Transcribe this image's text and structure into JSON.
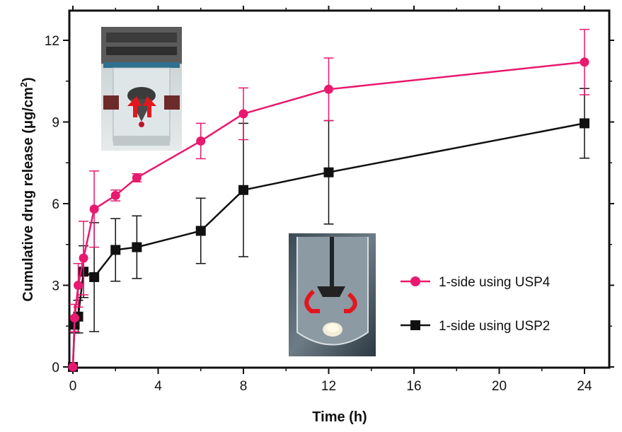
{
  "chart_data": {
    "type": "line",
    "xlabel": "Time (h)",
    "ylabel_main": "Cumulative drug release (μg/cm",
    "ylabel_sup": "2",
    "ylabel_end": ")",
    "xlim": [
      0,
      24
    ],
    "ylim": [
      0,
      12
    ],
    "xticks": [
      0,
      4,
      8,
      12,
      16,
      20,
      24
    ],
    "yticks": [
      0,
      3,
      6,
      9,
      12
    ],
    "xtick_labels": [
      "0",
      "4",
      "8",
      "12",
      "16",
      "20",
      "24"
    ],
    "ytick_labels": [
      "0",
      "3",
      "6",
      "9",
      "12"
    ],
    "grid": false,
    "legend_position": "bottom-right",
    "series": [
      {
        "name": "1-side using USP4",
        "color": "#e8196e",
        "marker": "circle",
        "x": [
          0,
          0.083,
          0.25,
          0.5,
          1,
          2,
          3,
          6,
          8,
          12,
          24
        ],
        "y": [
          0,
          1.8,
          3.0,
          4.0,
          5.8,
          6.3,
          6.95,
          8.3,
          9.3,
          10.2,
          11.2
        ],
        "err": [
          0,
          0.5,
          0.8,
          1.35,
          1.4,
          0.2,
          0.15,
          0.65,
          0.95,
          1.15,
          1.2
        ]
      },
      {
        "name": "1-side using USP2",
        "color": "#111111",
        "marker": "square",
        "x": [
          0,
          0.083,
          0.25,
          0.5,
          1,
          2,
          3,
          6,
          8,
          12,
          24
        ],
        "y": [
          0,
          1.55,
          1.85,
          3.5,
          3.3,
          4.3,
          4.4,
          5.0,
          6.5,
          7.15,
          8.95
        ],
        "err": [
          0,
          0.3,
          0.6,
          0.95,
          2.0,
          1.15,
          1.15,
          1.2,
          2.45,
          1.9,
          1.28
        ]
      }
    ]
  },
  "insets": {
    "top_left": {
      "description_icon": "usp4-flow-cell-photo-icon"
    },
    "bottom_right": {
      "description_icon": "usp2-paddle-vessel-photo-icon"
    }
  }
}
